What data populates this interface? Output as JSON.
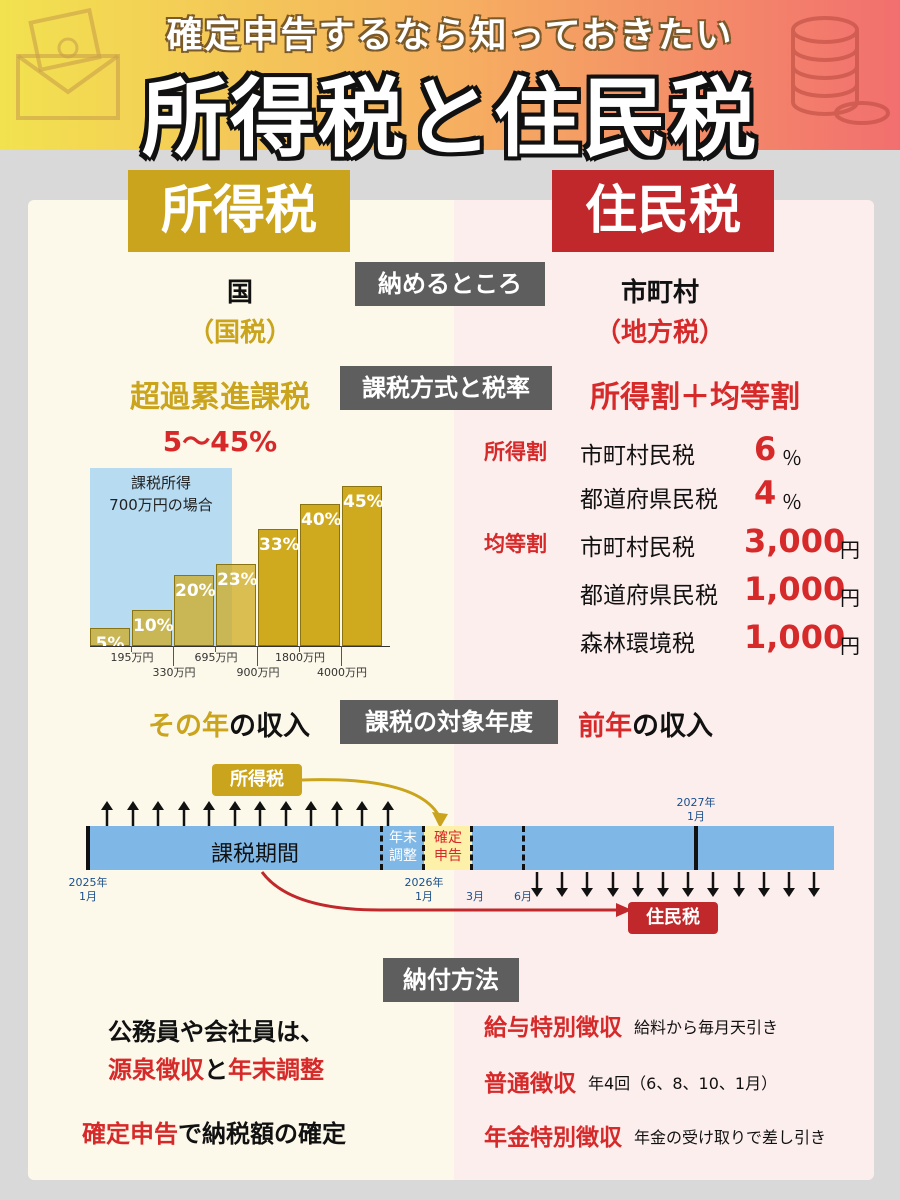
{
  "header": {
    "subtitle": "確定申告するなら知っておきたい",
    "title": "所得税と住民税"
  },
  "left_head": "所得税",
  "right_head": "住民税",
  "labels": {
    "where": "納めるところ",
    "method": "課税方式と税率",
    "year": "課税の対象年度",
    "payment": "納付方法"
  },
  "income_tax": {
    "payee": "国",
    "payee_type": "（国税）",
    "method": "超過累進課税",
    "rate_range": "5〜45%",
    "example_label_1": "課税所得",
    "example_label_2": "700万円の場合",
    "year": "その年",
    "year_suffix": "の収入"
  },
  "chart_data": {
    "type": "bar",
    "title": "",
    "categories": [
      "〜195万円",
      "195万円〜330万円",
      "330万円〜695万円",
      "695万円〜900万円",
      "900万円〜1800万円",
      "1800万円〜4000万円",
      "4000万円〜"
    ],
    "values": [
      5,
      10,
      20,
      23,
      33,
      40,
      45
    ],
    "value_labels": [
      "5%",
      "10%",
      "20%",
      "23%",
      "33%",
      "40%",
      "45%"
    ],
    "ticks_upper": [
      "195万円",
      "695万円",
      "1800万円"
    ],
    "ticks_lower": [
      "330万円",
      "900万円",
      "4000万円"
    ],
    "highlight_label": "課税所得 700万円の場合",
    "highlight_covers_brackets": 4
  },
  "resident_tax": {
    "payee": "市町村",
    "payee_type": "（地方税）",
    "method": "所得割＋均等割",
    "year": "前年",
    "year_suffix": "の収入",
    "rows": [
      {
        "group": "所得割",
        "name": "市町村民税",
        "value": "6",
        "unit": "％"
      },
      {
        "group": "",
        "name": "都道府県民税",
        "value": "4",
        "unit": "％"
      },
      {
        "group": "均等割",
        "name": "市町村民税",
        "value": "3,000",
        "unit": "円"
      },
      {
        "group": "",
        "name": "都道府県民税",
        "value": "1,000",
        "unit": "円"
      },
      {
        "group": "",
        "name": "森林環境税",
        "value": "1,000",
        "unit": "円"
      }
    ]
  },
  "timeline": {
    "income_tax_tag": "所得税",
    "resident_tax_tag": "住民税",
    "period_label": "課税期間",
    "year_end_1": "年末",
    "year_end_2": "調整",
    "filing_1": "確定",
    "filing_2": "申告",
    "start_1": "2025年",
    "start_2": "1月",
    "mid_1": "2026年",
    "mid_2": "1月",
    "march": "3月",
    "june": "6月",
    "next_1": "2027年",
    "next_2": "1月"
  },
  "payment_left": {
    "line1": "公務員や会社員は、",
    "line2_a": "源泉徴収",
    "line2_b": "と",
    "line2_c": "年末調整",
    "line3_a": "確定申告",
    "line3_b": "で納税額の確定"
  },
  "payment_right": [
    {
      "name": "給与特別徴収",
      "desc": "給料から毎月天引き"
    },
    {
      "name": "普通徴収",
      "desc": "年4回（6、8、10、1月）"
    },
    {
      "name": "年金特別徴収",
      "desc": "年金の受け取りで差し引き"
    }
  ],
  "colors": {
    "gold": "#c9a41c",
    "red": "#c0282b",
    "timeline_blue": "#7fb8e6"
  }
}
